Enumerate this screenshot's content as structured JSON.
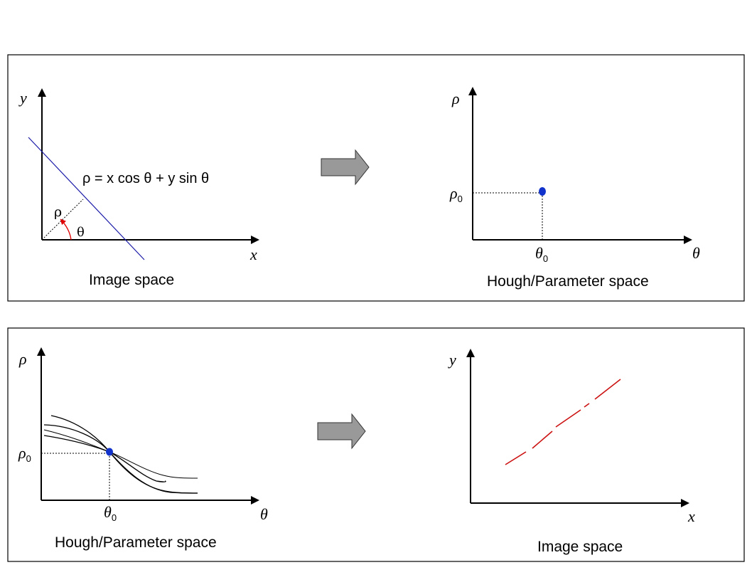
{
  "panel_top": {
    "left": {
      "title": "Image space",
      "axis_x": "x",
      "axis_y": "y",
      "equation": "ρ = x cos θ + y sin θ",
      "rho_label": "ρ",
      "theta_label": "θ"
    },
    "right": {
      "title": "Hough/Parameter space",
      "axis_x": "θ",
      "axis_y": "ρ",
      "rho0_main": "ρ",
      "rho0_sub": "0",
      "theta0_main": "θ",
      "theta0_sub": "0"
    }
  },
  "panel_bottom": {
    "left": {
      "title": "Hough/Parameter space",
      "axis_x": "θ",
      "axis_y": "ρ",
      "rho0_main": "ρ",
      "rho0_sub": "0",
      "theta0_main": "θ",
      "theta0_sub": "0"
    },
    "right": {
      "title": "Image space",
      "axis_x": "x",
      "axis_y": "y"
    }
  },
  "colors": {
    "line_blue": "#1a1aa8",
    "point_blue": "#1133cc",
    "dash_red": "#cc1111",
    "arrow_gray": "#999999"
  }
}
